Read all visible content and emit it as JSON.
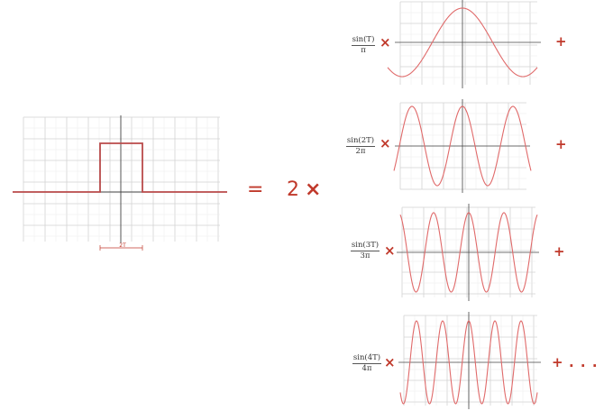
{
  "pulse_plot": {
    "width_label": "2T"
  },
  "equation": {
    "equals": "=",
    "coefficient": "2",
    "times": "×",
    "plus": "+",
    "ellipsis": ". . ."
  },
  "terms": [
    {
      "numerator": "sin(T)",
      "denominator": "π",
      "frequency": 1
    },
    {
      "numerator": "sin(2T)",
      "denominator": "2π",
      "frequency": 2
    },
    {
      "numerator": "sin(3T)",
      "denominator": "3π",
      "frequency": 3
    },
    {
      "numerator": "sin(4T)",
      "denominator": "4π",
      "frequency": 4
    }
  ],
  "colors": {
    "curve": "#e06a6a",
    "pulse": "#b94a4a",
    "operator": "#c0392b",
    "grid": "#dddddd",
    "axis": "#444444"
  }
}
